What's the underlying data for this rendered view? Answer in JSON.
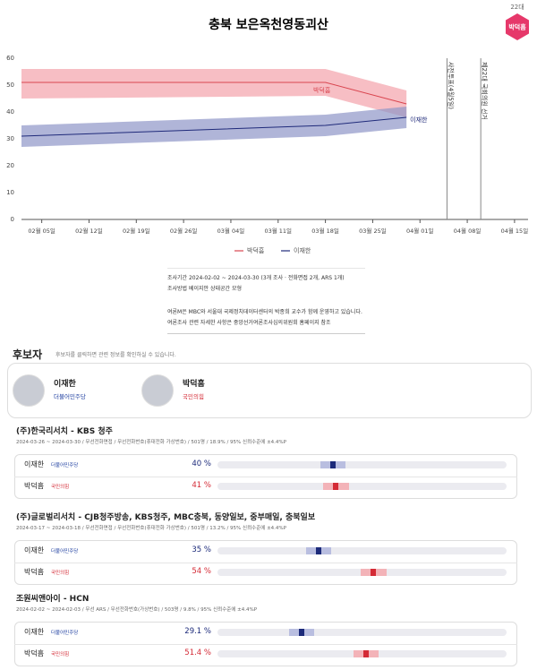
{
  "header": {
    "title": "충북 보은옥천영동괴산",
    "badge_top": "22대",
    "badge": "박덕흠"
  },
  "chart_data": {
    "type": "line",
    "xlim": [
      "02-02",
      "04-17"
    ],
    "xticks": [
      {
        "value": "02-05",
        "label": "02월 05일"
      },
      {
        "value": "02-12",
        "label": "02월 12일"
      },
      {
        "value": "02-19",
        "label": "02월 19일"
      },
      {
        "value": "02-26",
        "label": "02월 26일"
      },
      {
        "value": "03-04",
        "label": "03월 04일"
      },
      {
        "value": "03-11",
        "label": "03월 11일"
      },
      {
        "value": "03-18",
        "label": "03월 18일"
      },
      {
        "value": "03-25",
        "label": "03월 25일"
      },
      {
        "value": "04-01",
        "label": "04월 01일"
      },
      {
        "value": "04-08",
        "label": "04월 08일"
      },
      {
        "value": "04-15",
        "label": "04월 15일"
      }
    ],
    "ylim": [
      0,
      60
    ],
    "yticks": [
      0,
      10,
      20,
      30,
      40,
      50,
      60
    ],
    "grid": false,
    "x": [
      "02-02",
      "03-18",
      "03-30"
    ],
    "series": [
      {
        "name": "박덕흠",
        "color": "#d9454f",
        "band_color": "#f4a3ab",
        "values": [
          51,
          51,
          43
        ],
        "lower": [
          45,
          46,
          38
        ],
        "upper": [
          56,
          56,
          48
        ]
      },
      {
        "name": "이재한",
        "color": "#1f2a7a",
        "band_color": "#8f95c8",
        "values": [
          31,
          35,
          38
        ],
        "lower": [
          27,
          31,
          34
        ],
        "upper": [
          35,
          39,
          42
        ]
      }
    ],
    "events": [
      {
        "x": "04-05",
        "label": "사전투표(4월5일)"
      },
      {
        "x": "04-10",
        "label": "제22대 국회의원 선거"
      }
    ]
  },
  "notes": {
    "period": "조사기간 2024-02-02 ~ 2024-03-30 (3개 조사 · 전화면접 2개, ARS 1개)",
    "method": "조사방법 베이지안 상태공간 모형",
    "about": "여론M은 MBC와 서울대 국제정치데이터센터의 박종희 교수가 함께 운영하고 있습니다.",
    "ref": "여론조사 관련 자세한 사항은 중앙선거여론조사심의위원회 홈페이지 참조"
  },
  "candidates": {
    "title": "후보자",
    "hint": "후보자를 클릭하면 관련 정보를 확인하실 수 있습니다.",
    "items": [
      {
        "name": "이재한",
        "party": "더불어민주당"
      },
      {
        "name": "박덕흠",
        "party": "국민의힘"
      }
    ]
  },
  "polls": [
    {
      "title": "(주)한국리서치 - KBS 청주",
      "meta": "2024-03-26 ~ 2024-03-30 / 무선전화면접 / 무선전화번호(휴대전화 가상번호) / 501명 / 18.9% / 95% 신뢰수준에 ±4.4%P",
      "margin_of_error": 4.4,
      "rows": [
        {
          "name": "이재한",
          "party": "더불어민주당",
          "value": 40,
          "value_label": "40 %"
        },
        {
          "name": "박덕흠",
          "party": "국민의힘",
          "value": 41,
          "value_label": "41 %"
        }
      ]
    },
    {
      "title": "(주)글로벌리서치 - CJB청주방송, KBS청주, MBC충북, 동양일보, 중부매일, 충북일보",
      "meta": "2024-03-17 ~ 2024-03-18 / 무선전화면접 / 무선전화번호(휴대전화 가상번호) / 501명 / 13.2% / 95% 신뢰수준에 ±4.4%P",
      "margin_of_error": 4.4,
      "rows": [
        {
          "name": "이재한",
          "party": "더불어민주당",
          "value": 35,
          "value_label": "35 %"
        },
        {
          "name": "박덕흠",
          "party": "국민의힘",
          "value": 54,
          "value_label": "54 %"
        }
      ]
    },
    {
      "title": "조원씨앤아이 - HCN",
      "meta": "2024-02-02 ~ 2024-02-03 / 무선 ARS / 무선전화번호(가상번호) / 503명 / 9.8% / 95% 신뢰수준에 ±4.4%P",
      "margin_of_error": 4.4,
      "rows": [
        {
          "name": "이재한",
          "party": "더불어민주당",
          "value": 29.1,
          "value_label": "29.1 %"
        },
        {
          "name": "박덕흠",
          "party": "국민의힘",
          "value": 51.4,
          "value_label": "51.4 %"
        }
      ]
    }
  ]
}
